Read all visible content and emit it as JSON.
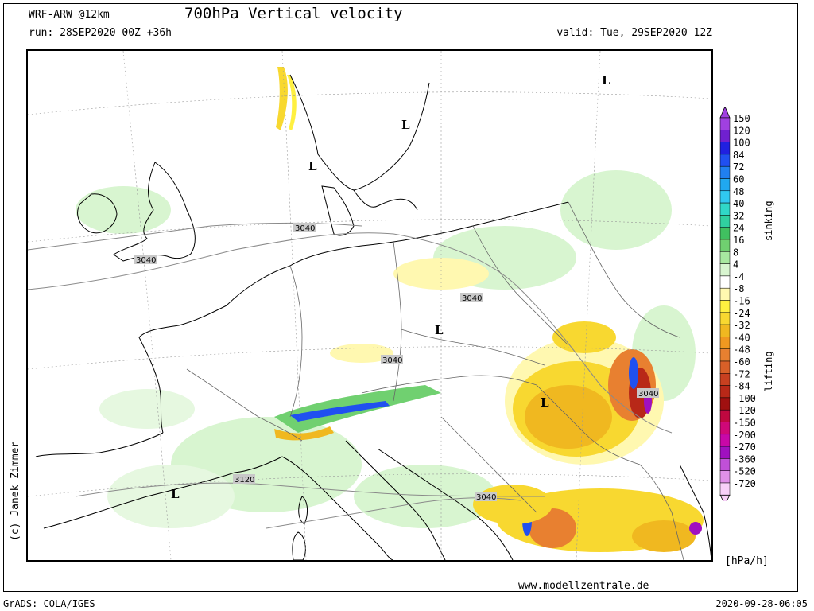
{
  "header": {
    "model": "WRF-ARW @12km",
    "title": "700hPa Vertical velocity",
    "run": "run: 28SEP2020 00Z +36h",
    "valid": "valid: Tue, 29SEP2020 12Z"
  },
  "footer": {
    "credit": "(c) Janek Zimmer",
    "website": "www.modellzentrale.de",
    "software": "GrADS: COLA/IGES",
    "timestamp": "2020-09-28-06:05"
  },
  "legend": {
    "unit": "[hPa/h]",
    "sinking_label": "sinking",
    "lifting_label": "lifting",
    "levels": [
      {
        "label": "150",
        "color": "#a040e0"
      },
      {
        "label": "120",
        "color": "#7020d0"
      },
      {
        "label": "100",
        "color": "#2020e0"
      },
      {
        "label": "84",
        "color": "#2050f0"
      },
      {
        "label": "72",
        "color": "#2080f0"
      },
      {
        "label": "60",
        "color": "#20a8f0"
      },
      {
        "label": "48",
        "color": "#30c8f0"
      },
      {
        "label": "40",
        "color": "#30d8c8"
      },
      {
        "label": "32",
        "color": "#30d0a0"
      },
      {
        "label": "24",
        "color": "#40c060"
      },
      {
        "label": "16",
        "color": "#70d070"
      },
      {
        "label": "8",
        "color": "#a8e8a0"
      },
      {
        "label": "4",
        "color": "#d8f5d0"
      },
      {
        "label": "-4",
        "color": "#ffffff"
      },
      {
        "label": "-8",
        "color": "#fff8b0"
      },
      {
        "label": "-16",
        "color": "#fff040"
      },
      {
        "label": "-24",
        "color": "#f8d830"
      },
      {
        "label": "-32",
        "color": "#f0b820"
      },
      {
        "label": "-40",
        "color": "#f09820"
      },
      {
        "label": "-48",
        "color": "#e88030"
      },
      {
        "label": "-60",
        "color": "#d86028"
      },
      {
        "label": "-72",
        "color": "#c84020"
      },
      {
        "label": "-84",
        "color": "#b82818"
      },
      {
        "label": "-100",
        "color": "#a01010"
      },
      {
        "label": "-120",
        "color": "#c00840"
      },
      {
        "label": "-150",
        "color": "#d00878"
      },
      {
        "label": "-200",
        "color": "#c808a8"
      },
      {
        "label": "-270",
        "color": "#a010c0"
      },
      {
        "label": "-360",
        "color": "#c050d8"
      },
      {
        "label": "-520",
        "color": "#e090e8"
      },
      {
        "label": "-720",
        "color": "#f8d0f8"
      }
    ]
  },
  "map": {
    "pressure_lows": [
      "L",
      "L",
      "L",
      "L",
      "L",
      "L"
    ],
    "isohypse_labels": [
      "3040",
      "3040",
      "3040",
      "3040",
      "3040",
      "3040",
      "3040",
      "3120"
    ]
  }
}
